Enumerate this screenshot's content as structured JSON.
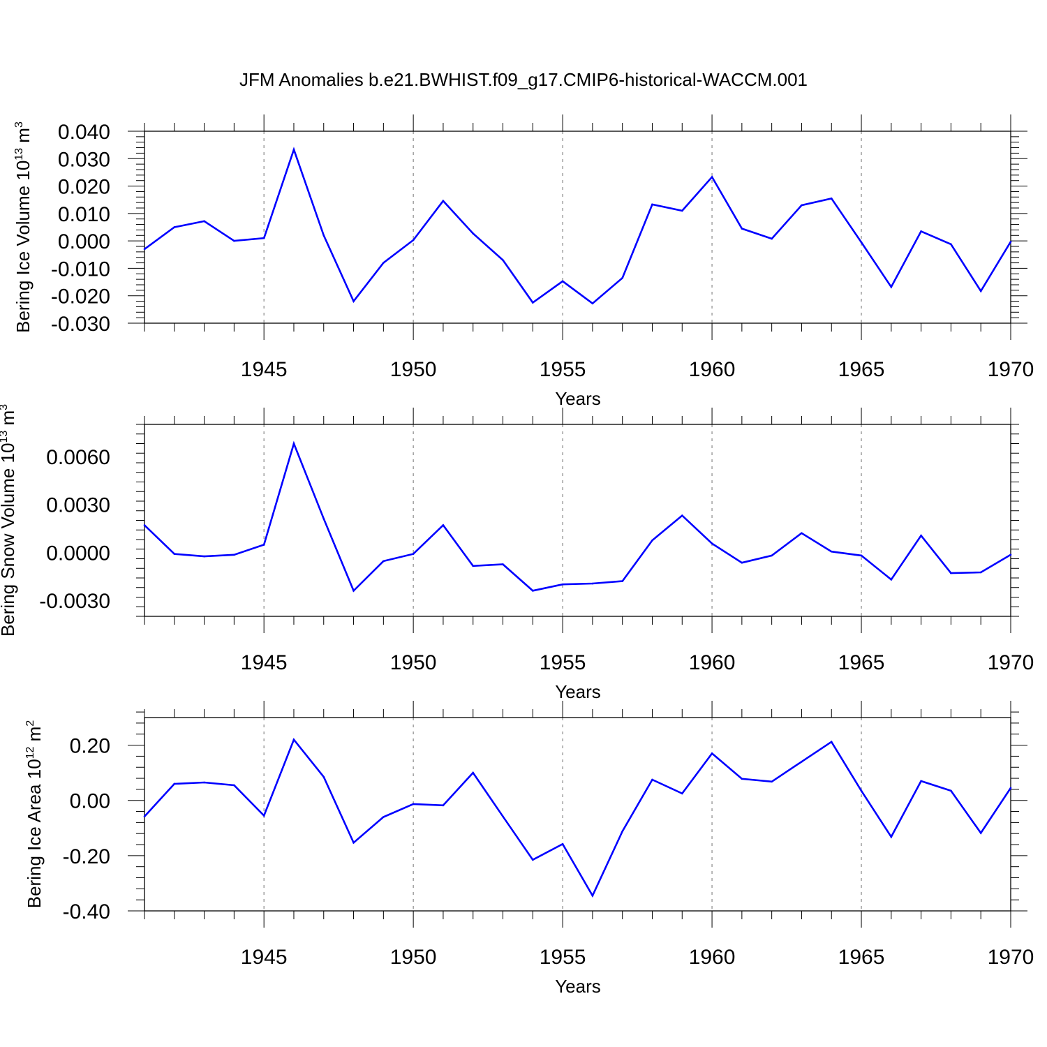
{
  "title": "JFM Anomalies b.e21.BWHIST.f09_g17.CMIP6-historical-WACCM.001",
  "colors": {
    "line": "#0000ff",
    "axis": "#000000",
    "grid": "#888888"
  },
  "chart_data": [
    {
      "type": "line",
      "ylabel": "Bering Ice Volume 10",
      "ylabel_exp": "13",
      "ylabel_unit": " m",
      "ylabel_unit_exp": "3",
      "xlabel": "Years",
      "xlim": [
        1941,
        1970
      ],
      "ylim": [
        -0.03,
        0.04
      ],
      "yticks": [
        -0.03,
        -0.02,
        -0.01,
        0.0,
        0.01,
        0.02,
        0.03,
        0.04
      ],
      "ytick_labels": [
        "-0.030",
        "-0.020",
        "-0.010",
        "0.000",
        "0.010",
        "0.020",
        "0.030",
        "0.040"
      ],
      "xticks": [
        1945,
        1950,
        1955,
        1960,
        1965,
        1970
      ],
      "xtick_labels": [
        "1945",
        "1950",
        "1955",
        "1960",
        "1965",
        "1970"
      ],
      "grid": "vertical dashed at 1945, 1950, 1955, 1960, 1965",
      "x": [
        1941,
        1942,
        1943,
        1944,
        1945,
        1946,
        1947,
        1948,
        1949,
        1950,
        1951,
        1952,
        1953,
        1954,
        1955,
        1956,
        1957,
        1958,
        1959,
        1960,
        1961,
        1962,
        1963,
        1964,
        1965,
        1966,
        1967,
        1968,
        1969,
        1970
      ],
      "values": [
        -0.003,
        0.005,
        0.0072,
        0.0,
        0.001,
        0.0333,
        0.002,
        -0.022,
        -0.008,
        0.0003,
        0.0146,
        0.0027,
        -0.007,
        -0.0225,
        -0.0147,
        -0.0228,
        -0.0135,
        0.0133,
        0.011,
        0.0233,
        0.0045,
        0.0008,
        0.013,
        0.0155,
        -0.0005,
        -0.0168,
        0.0035,
        -0.0012,
        -0.0183,
        -0.0003
      ]
    },
    {
      "type": "line",
      "ylabel": "Bering Snow Volume 10",
      "ylabel_exp": "13",
      "ylabel_unit": " m",
      "ylabel_unit_exp": "3",
      "xlabel": "Years",
      "xlim": [
        1941,
        1970
      ],
      "ylim": [
        -0.004,
        0.008
      ],
      "yticks": [
        -0.003,
        0.0,
        0.003,
        0.006
      ],
      "ytick_labels": [
        "-0.0030",
        "0.0000",
        "0.0030",
        "0.0060"
      ],
      "xticks": [
        1945,
        1950,
        1955,
        1960,
        1965,
        1970
      ],
      "xtick_labels": [
        "1945",
        "1950",
        "1955",
        "1960",
        "1965",
        "1970"
      ],
      "grid": "vertical dashed at 1945, 1950, 1955, 1960, 1965",
      "x": [
        1941,
        1942,
        1943,
        1944,
        1945,
        1946,
        1947,
        1948,
        1949,
        1950,
        1951,
        1952,
        1953,
        1954,
        1955,
        1956,
        1957,
        1958,
        1959,
        1960,
        1961,
        1962,
        1963,
        1964,
        1965,
        1966,
        1967,
        1968,
        1969,
        1970
      ],
      "values": [
        0.0017,
        -0.0001,
        -0.00025,
        -0.00015,
        0.00048,
        0.0068,
        0.0021,
        -0.0024,
        -0.00055,
        -0.0001,
        0.0017,
        -0.00085,
        -0.00075,
        -0.0024,
        -0.002,
        -0.00195,
        -0.0018,
        0.00075,
        0.0023,
        0.00055,
        -0.00065,
        -0.0002,
        0.0012,
        5e-05,
        -0.0002,
        -0.0017,
        0.00105,
        -0.0013,
        -0.00125,
        -0.00015
      ]
    },
    {
      "type": "line",
      "ylabel": "Bering Ice Area 10",
      "ylabel_exp": "12",
      "ylabel_unit": " m",
      "ylabel_unit_exp": "2",
      "xlabel": "Years",
      "xlim": [
        1941,
        1970
      ],
      "ylim": [
        -0.4,
        0.3
      ],
      "yticks": [
        -0.4,
        -0.2,
        0.0,
        0.2
      ],
      "ytick_labels": [
        "-0.40",
        "-0.20",
        "0.00",
        "0.20"
      ],
      "xticks": [
        1945,
        1950,
        1955,
        1960,
        1965,
        1970
      ],
      "xtick_labels": [
        "1945",
        "1950",
        "1955",
        "1960",
        "1965",
        "1970"
      ],
      "grid": "vertical dashed at 1945, 1950, 1955, 1960, 1965",
      "x": [
        1941,
        1942,
        1943,
        1944,
        1945,
        1946,
        1947,
        1948,
        1949,
        1950,
        1951,
        1952,
        1953,
        1954,
        1955,
        1956,
        1957,
        1958,
        1959,
        1960,
        1961,
        1962,
        1963,
        1964,
        1965,
        1966,
        1967,
        1968,
        1969,
        1970
      ],
      "values": [
        -0.058,
        0.06,
        0.065,
        0.055,
        -0.055,
        0.22,
        0.085,
        -0.153,
        -0.06,
        -0.013,
        -0.018,
        0.1,
        -0.058,
        -0.215,
        -0.158,
        -0.345,
        -0.112,
        0.075,
        0.025,
        0.17,
        0.078,
        0.068,
        0.14,
        0.212,
        0.035,
        -0.132,
        0.07,
        0.035,
        -0.118,
        0.045
      ]
    }
  ]
}
